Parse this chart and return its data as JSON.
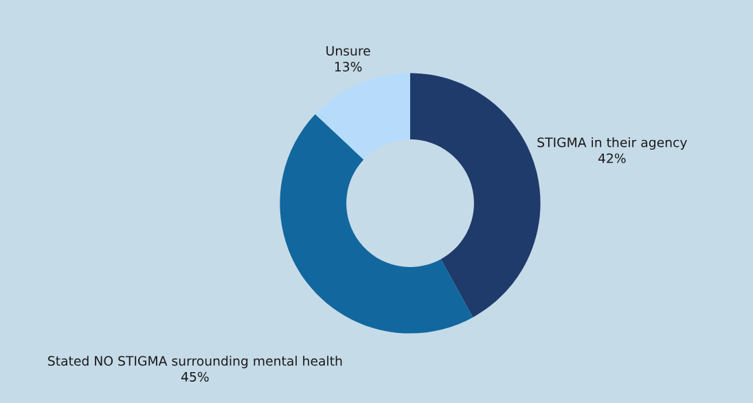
{
  "chart_data": {
    "type": "donut",
    "categories": [
      "STIGMA in their agency",
      "Stated NO STIGMA surrounding mental health",
      "Unsure"
    ],
    "values": [
      42,
      45,
      13
    ],
    "value_labels": [
      "42%",
      "45%",
      "13%"
    ],
    "colors": [
      "#1f3b6b",
      "#12679e",
      "#b7dcfb"
    ],
    "legend": false
  }
}
